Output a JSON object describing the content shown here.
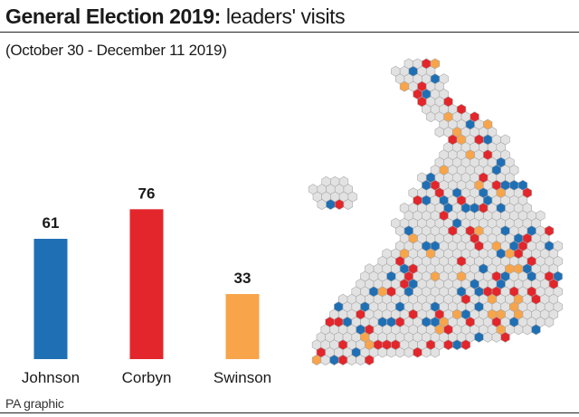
{
  "header": {
    "title_bold": "General Election 2019:",
    "title_rest": " leaders' visits",
    "subtitle": "(October 30 - December 11 2019)"
  },
  "chart_data": {
    "type": "bar",
    "categories": [
      "Johnson",
      "Corbyn",
      "Swinson"
    ],
    "values": [
      61,
      76,
      33
    ],
    "colors": [
      "#1f6fb5",
      "#e3262b",
      "#f7a44a"
    ],
    "title": "General Election 2019: leaders' visits",
    "subtitle": "(October 30 - December 11 2019)",
    "xlabel": "",
    "ylabel": "",
    "grid": false,
    "legend": "none"
  },
  "map": {
    "type": "hex-map",
    "region": "Great Britain constituencies",
    "visited_by_colors": {
      "Johnson": "#1f6fb5",
      "Corbyn": "#e3262b",
      "Swinson": "#f7a44a",
      "none": "#e2e2e2"
    }
  },
  "footer": {
    "source": "PA graphic"
  }
}
